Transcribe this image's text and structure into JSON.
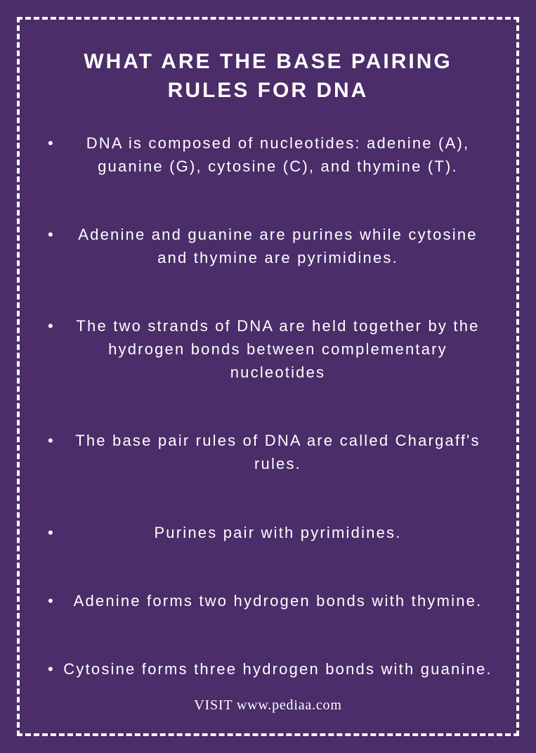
{
  "colors": {
    "background": "#4a2d69",
    "text": "#ffffff",
    "border": "#ffffff"
  },
  "typography": {
    "title_fontsize": 30,
    "title_letter_spacing": 3,
    "body_fontsize": 22,
    "body_letter_spacing": 2.2,
    "footer_fontsize": 20
  },
  "border": {
    "style": "dashed",
    "width": 4,
    "inset": 24
  },
  "title": "WHAT ARE THE BASE PAIRING RULES FOR DNA",
  "bullets": [
    "DNA is composed of nucleotides: adenine (A), guanine (G), cytosine (C), and thymine (T).",
    "Adenine and guanine are purines while cytosine and thymine are pyrimidines.",
    "The two strands of DNA are held together by the hydrogen bonds between complementary nucleotides",
    "The base pair rules of DNA are called Chargaff's rules.",
    "Purines pair with pyrimidines.",
    "Adenine forms two hydrogen bonds with thymine.",
    "Cytosine forms three hydrogen bonds with guanine."
  ],
  "footer": "VISIT www.pediaa.com"
}
